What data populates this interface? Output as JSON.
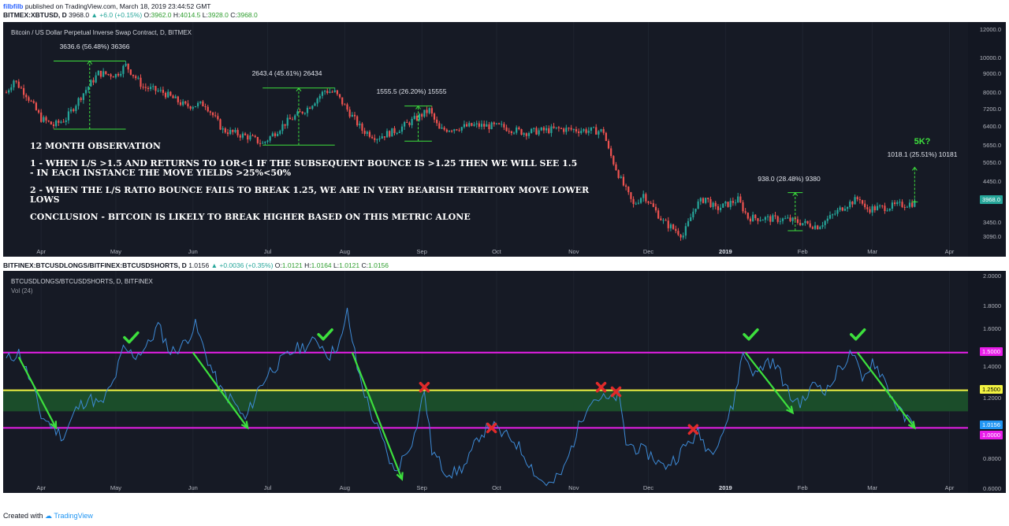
{
  "header": {
    "author": "filbfilb",
    "published": "published on TradingView.com, March 18, 2019 23:44:52 GMT",
    "symbol": "BITMEX:XBTUSD, D",
    "last": "3968.0",
    "change": "+6.0 (+0.15%)",
    "o_label": "O:",
    "o": "3962.0",
    "h_label": "H:",
    "h": "4014.5",
    "l_label": "L:",
    "l": "3928.0",
    "c_label": "C:",
    "c": "3968.0"
  },
  "header2": {
    "symbol": "BITFINEX:BTCUSDLONGS/BITFINEX:BTCUSDSHORTS, D",
    "last": "1.0156",
    "change": "+0.0036 (+0.35%)",
    "o_label": "O:",
    "o": "1.0121",
    "h_label": "H:",
    "h": "1.0164",
    "l_label": "L:",
    "l": "1.0121",
    "c_label": "C:",
    "c": "1.0156"
  },
  "colors": {
    "background": "#161a25",
    "up": "#26a69a",
    "down": "#ef5350",
    "magenta": "#e91ee9",
    "yellow": "#f4f442",
    "arrow": "#3de03d",
    "line": "#3d8ad6",
    "zone": "#1b4d2a"
  },
  "observation": {
    "title": "12 MONTH OBSERVATION",
    "point1a": "1 - WHEN L/S >1.5 AND RETURNS TO 1OR<1 IF THE SUBSEQUENT BOUNCE IS >1.25 THEN WE WILL SEE 1.5",
    "point1b": "- IN EACH INSTANCE THE MOVE YIELDS >25%<50%",
    "point2a": "2 - WHEN THE L/S RATIO BOUNCE FAILS TO BREAK 1.25, WE ARE IN VERY BEARISH TERRITORY MOVE LOWER",
    "point2b": "LOWS",
    "conclusion": "CONCLUSION - BITCOIN IS LIKELY TO BREAK HIGHER BASED  ON THIS METRIC ALONE"
  },
  "annotations": {
    "m1": "3636.6 (56.48%) 36366",
    "m2": "2643.4 (45.61%) 26434",
    "m3": "1555.5 (26.20%) 15555",
    "m4": "938.0 (28.48%) 9380",
    "m5": "1018.1 (25.51%) 10181",
    "target": "5K?"
  },
  "price_badge": "3968.0",
  "ratio_badges": {
    "b150": "1.5000",
    "b125": "1.2500",
    "last": "1.0156",
    "b100": "1.0000"
  },
  "footer": {
    "created": "Created with",
    "brand": "TradingView"
  },
  "chart_data": [
    {
      "type": "candlestick",
      "title": "Bitcoin / US Dollar Perpetual Inverse Swap Contract, D, BITMEX",
      "x_tick_labels": [
        "Apr",
        "May",
        "Jun",
        "Jul",
        "Aug",
        "Sep",
        "Oct",
        "Nov",
        "Dec",
        "2019",
        "Feb",
        "Mar",
        "Apr"
      ],
      "y_tick_labels": [
        "12000.0",
        "10000.0",
        "9000.0",
        "8000.0",
        "7200.0",
        "6400.0",
        "5650.0",
        "5050.0",
        "4450.0",
        "3450.0",
        "3090.0"
      ],
      "y_scale": "log",
      "ylim": [
        2900,
        12500
      ],
      "close_path": [
        {
          "date": "2018-03-18",
          "value": 8200
        },
        {
          "date": "2018-03-21",
          "value": 8900
        },
        {
          "date": "2018-03-26",
          "value": 8100
        },
        {
          "date": "2018-04-01",
          "value": 6900
        },
        {
          "date": "2018-04-06",
          "value": 6600
        },
        {
          "date": "2018-04-11",
          "value": 6900
        },
        {
          "date": "2018-04-17",
          "value": 8000
        },
        {
          "date": "2018-04-24",
          "value": 9300
        },
        {
          "date": "2018-05-01",
          "value": 9200
        },
        {
          "date": "2018-05-05",
          "value": 9800
        },
        {
          "date": "2018-05-12",
          "value": 8500
        },
        {
          "date": "2018-05-20",
          "value": 8200
        },
        {
          "date": "2018-05-29",
          "value": 7500
        },
        {
          "date": "2018-06-06",
          "value": 7600
        },
        {
          "date": "2018-06-13",
          "value": 6400
        },
        {
          "date": "2018-06-24",
          "value": 6100
        },
        {
          "date": "2018-06-29",
          "value": 5850
        },
        {
          "date": "2018-07-08",
          "value": 6700
        },
        {
          "date": "2018-07-17",
          "value": 7400
        },
        {
          "date": "2018-07-24",
          "value": 8300
        },
        {
          "date": "2018-07-28",
          "value": 8200
        },
        {
          "date": "2018-08-08",
          "value": 6400
        },
        {
          "date": "2018-08-14",
          "value": 6100
        },
        {
          "date": "2018-08-22",
          "value": 6400
        },
        {
          "date": "2018-09-04",
          "value": 7300
        },
        {
          "date": "2018-09-08",
          "value": 6400
        },
        {
          "date": "2018-09-22",
          "value": 6600
        },
        {
          "date": "2018-10-03",
          "value": 6550
        },
        {
          "date": "2018-10-12",
          "value": 6300
        },
        {
          "date": "2018-10-26",
          "value": 6450
        },
        {
          "date": "2018-11-13",
          "value": 6350
        },
        {
          "date": "2018-11-15",
          "value": 5600
        },
        {
          "date": "2018-11-20",
          "value": 4600
        },
        {
          "date": "2018-11-25",
          "value": 3900
        },
        {
          "date": "2018-11-29",
          "value": 4200
        },
        {
          "date": "2018-12-07",
          "value": 3500
        },
        {
          "date": "2018-12-15",
          "value": 3200
        },
        {
          "date": "2018-12-20",
          "value": 3900
        },
        {
          "date": "2018-12-24",
          "value": 4100
        },
        {
          "date": "2018-12-28",
          "value": 3800
        },
        {
          "date": "2019-01-06",
          "value": 4050
        },
        {
          "date": "2019-01-10",
          "value": 3600
        },
        {
          "date": "2019-01-26",
          "value": 3550
        },
        {
          "date": "2019-02-07",
          "value": 3400
        },
        {
          "date": "2019-02-12",
          "value": 3600
        },
        {
          "date": "2019-02-18",
          "value": 3900
        },
        {
          "date": "2019-02-24",
          "value": 4100
        },
        {
          "date": "2019-02-26",
          "value": 3800
        },
        {
          "date": "2019-03-06",
          "value": 3850
        },
        {
          "date": "2019-03-18",
          "value": 3968
        }
      ],
      "measurements": [
        {
          "from_date": "2018-04-06",
          "to_date": "2018-05-05",
          "low": 6440,
          "high": 10080,
          "label_key": "m1"
        },
        {
          "from_date": "2018-06-29",
          "to_date": "2018-07-28",
          "low": 5800,
          "high": 8440,
          "label_key": "m2"
        },
        {
          "from_date": "2018-08-25",
          "to_date": "2018-09-05",
          "low": 5950,
          "high": 7500,
          "label_key": "m3"
        },
        {
          "from_date": "2019-01-26",
          "to_date": "2019-02-01",
          "low": 3300,
          "high": 4240,
          "label_key": "m4"
        },
        {
          "from_date": "2019-03-18",
          "to_date": "2019-03-18",
          "low": 3990,
          "high": 5010,
          "label_key": "m5"
        }
      ]
    },
    {
      "type": "line",
      "title": "BTCUSDLONGS/BTCUSDSHORTS, D, BITFINEX",
      "subtitle": "Vol (24)",
      "x_tick_labels": [
        "Apr",
        "May",
        "Jun",
        "Jul",
        "Aug",
        "Sep",
        "Oct",
        "Nov",
        "Dec",
        "2019",
        "Feb",
        "Mar",
        "Apr"
      ],
      "y_tick_labels": [
        "2.0000",
        "1.8000",
        "1.6000",
        "1.4000",
        "1.2000",
        "0.8000",
        "0.6000"
      ],
      "ylim": [
        0.6,
        2.0
      ],
      "horizontal_lines": [
        1.5,
        1.25,
        1.0
      ],
      "green_zone": [
        1.11,
        1.25
      ],
      "series": [
        {
          "date": "2018-03-18",
          "value": 1.45
        },
        {
          "date": "2018-03-23",
          "value": 1.5
        },
        {
          "date": "2018-03-28",
          "value": 1.3
        },
        {
          "date": "2018-04-01",
          "value": 1.08
        },
        {
          "date": "2018-04-05",
          "value": 1.02
        },
        {
          "date": "2018-04-10",
          "value": 0.94
        },
        {
          "date": "2018-04-15",
          "value": 1.12
        },
        {
          "date": "2018-04-20",
          "value": 1.2
        },
        {
          "date": "2018-04-25",
          "value": 1.15
        },
        {
          "date": "2018-04-30",
          "value": 1.3
        },
        {
          "date": "2018-05-04",
          "value": 1.52
        },
        {
          "date": "2018-05-09",
          "value": 1.48
        },
        {
          "date": "2018-05-14",
          "value": 1.55
        },
        {
          "date": "2018-05-18",
          "value": 1.68
        },
        {
          "date": "2018-05-23",
          "value": 1.5
        },
        {
          "date": "2018-05-28",
          "value": 1.55
        },
        {
          "date": "2018-06-02",
          "value": 1.68
        },
        {
          "date": "2018-06-07",
          "value": 1.45
        },
        {
          "date": "2018-06-12",
          "value": 1.25
        },
        {
          "date": "2018-06-17",
          "value": 1.18
        },
        {
          "date": "2018-06-22",
          "value": 1.05
        },
        {
          "date": "2018-06-27",
          "value": 1.25
        },
        {
          "date": "2018-07-02",
          "value": 1.38
        },
        {
          "date": "2018-07-07",
          "value": 1.45
        },
        {
          "date": "2018-07-12",
          "value": 1.52
        },
        {
          "date": "2018-07-17",
          "value": 1.55
        },
        {
          "date": "2018-07-21",
          "value": 1.58
        },
        {
          "date": "2018-07-26",
          "value": 1.48
        },
        {
          "date": "2018-07-31",
          "value": 1.6
        },
        {
          "date": "2018-08-02",
          "value": 1.77
        },
        {
          "date": "2018-08-06",
          "value": 1.4
        },
        {
          "date": "2018-08-11",
          "value": 1.12
        },
        {
          "date": "2018-08-16",
          "value": 0.92
        },
        {
          "date": "2018-08-21",
          "value": 0.7
        },
        {
          "date": "2018-08-25",
          "value": 0.82
        },
        {
          "date": "2018-08-29",
          "value": 0.95
        },
        {
          "date": "2018-09-02",
          "value": 1.25
        },
        {
          "date": "2018-09-05",
          "value": 0.85
        },
        {
          "date": "2018-09-10",
          "value": 0.72
        },
        {
          "date": "2018-09-14",
          "value": 0.7
        },
        {
          "date": "2018-09-19",
          "value": 0.76
        },
        {
          "date": "2018-09-24",
          "value": 0.95
        },
        {
          "date": "2018-09-29",
          "value": 1.02
        },
        {
          "date": "2018-10-03",
          "value": 0.96
        },
        {
          "date": "2018-10-08",
          "value": 0.92
        },
        {
          "date": "2018-10-13",
          "value": 0.8
        },
        {
          "date": "2018-10-18",
          "value": 0.66
        },
        {
          "date": "2018-10-23",
          "value": 0.62
        },
        {
          "date": "2018-10-28",
          "value": 0.72
        },
        {
          "date": "2018-11-02",
          "value": 0.96
        },
        {
          "date": "2018-11-07",
          "value": 1.18
        },
        {
          "date": "2018-11-11",
          "value": 1.2
        },
        {
          "date": "2018-11-16",
          "value": 1.18
        },
        {
          "date": "2018-11-19",
          "value": 1.22
        },
        {
          "date": "2018-11-22",
          "value": 0.9
        },
        {
          "date": "2018-11-27",
          "value": 0.86
        },
        {
          "date": "2018-12-02",
          "value": 0.82
        },
        {
          "date": "2018-12-07",
          "value": 0.74
        },
        {
          "date": "2018-12-12",
          "value": 0.8
        },
        {
          "date": "2018-12-17",
          "value": 0.9
        },
        {
          "date": "2018-12-21",
          "value": 0.96
        },
        {
          "date": "2018-12-26",
          "value": 0.84
        },
        {
          "date": "2018-12-31",
          "value": 0.98
        },
        {
          "date": "2019-01-04",
          "value": 1.15
        },
        {
          "date": "2019-01-08",
          "value": 1.5
        },
        {
          "date": "2019-01-13",
          "value": 1.35
        },
        {
          "date": "2019-01-18",
          "value": 1.45
        },
        {
          "date": "2019-01-22",
          "value": 1.4
        },
        {
          "date": "2019-01-27",
          "value": 1.2
        },
        {
          "date": "2019-02-01",
          "value": 1.17
        },
        {
          "date": "2019-02-06",
          "value": 1.3
        },
        {
          "date": "2019-02-11",
          "value": 1.25
        },
        {
          "date": "2019-02-16",
          "value": 1.4
        },
        {
          "date": "2019-02-21",
          "value": 1.5
        },
        {
          "date": "2019-02-25",
          "value": 1.3
        },
        {
          "date": "2019-03-01",
          "value": 1.45
        },
        {
          "date": "2019-03-05",
          "value": 1.35
        },
        {
          "date": "2019-03-09",
          "value": 1.2
        },
        {
          "date": "2019-03-13",
          "value": 1.08
        },
        {
          "date": "2019-03-18",
          "value": 1.0156
        }
      ],
      "checkmarks": [
        {
          "date": "2018-05-07",
          "value": 1.6
        },
        {
          "date": "2018-07-24",
          "value": 1.62
        },
        {
          "date": "2019-01-11",
          "value": 1.62
        },
        {
          "date": "2019-02-23",
          "value": 1.62
        }
      ],
      "crosses": [
        {
          "date": "2018-09-02",
          "value": 1.27
        },
        {
          "date": "2018-09-29",
          "value": 1.0
        },
        {
          "date": "2018-11-12",
          "value": 1.27
        },
        {
          "date": "2018-11-18",
          "value": 1.24
        },
        {
          "date": "2018-12-19",
          "value": 0.99
        }
      ],
      "arrows": [
        {
          "from_date": "2018-03-23",
          "from_value": 1.47,
          "to_date": "2018-04-07",
          "to_value": 1.0
        },
        {
          "from_date": "2018-06-01",
          "from_value": 1.5,
          "to_date": "2018-06-23",
          "to_value": 1.0
        },
        {
          "from_date": "2018-08-04",
          "from_value": 1.5,
          "to_date": "2018-08-24",
          "to_value": 0.66
        },
        {
          "from_date": "2019-01-09",
          "from_value": 1.5,
          "to_date": "2019-01-28",
          "to_value": 1.1
        },
        {
          "from_date": "2019-02-23",
          "from_value": 1.5,
          "to_date": "2019-03-18",
          "to_value": 1.0
        }
      ]
    }
  ]
}
